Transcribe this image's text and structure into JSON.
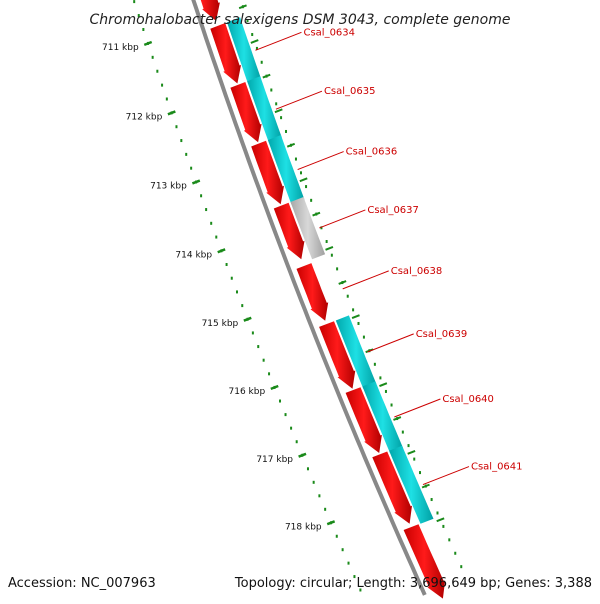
{
  "title": "Chromohalobacter salexigens DSM 3043, complete genome",
  "footer": {
    "accession": "Accession: NC_007963",
    "topology": "Topology: circular; Length: 3,696,649 bp; Genes: 3,388"
  },
  "colors": {
    "gene": "#ff0000",
    "cds_cyan": "#00c8cc",
    "cds_gray": "#c0c0c0",
    "backbone": "#888888",
    "ruler": "#1a8a1a",
    "label": "#cc0000"
  },
  "ruler_ticks": [
    "711 kbp",
    "712 kbp",
    "713 kbp",
    "714 kbp",
    "715 kbp",
    "716 kbp",
    "717 kbp",
    "718 kbp"
  ],
  "features": [
    {
      "label": "Csal_0634",
      "start": 711.12,
      "end": 711.95,
      "cds_color": "cyan"
    },
    {
      "label": "Csal_0635",
      "start": 711.97,
      "end": 712.8,
      "cds_color": "cyan"
    },
    {
      "label": "Csal_0636",
      "start": 712.82,
      "end": 713.7,
      "cds_color": "cyan"
    },
    {
      "label": "Csal_0637",
      "start": 713.72,
      "end": 714.5,
      "cds_color": "gray"
    },
    {
      "label": "Csal_0638",
      "start": 714.6,
      "end": 715.4,
      "cds_color": "none"
    },
    {
      "label": "Csal_0639",
      "start": 715.45,
      "end": 716.4,
      "cds_color": "cyan"
    },
    {
      "label": "Csal_0640",
      "start": 716.42,
      "end": 717.35,
      "cds_color": "cyan"
    },
    {
      "label": "Csal_0641",
      "start": 717.37,
      "end": 718.4,
      "cds_color": "cyan"
    }
  ]
}
